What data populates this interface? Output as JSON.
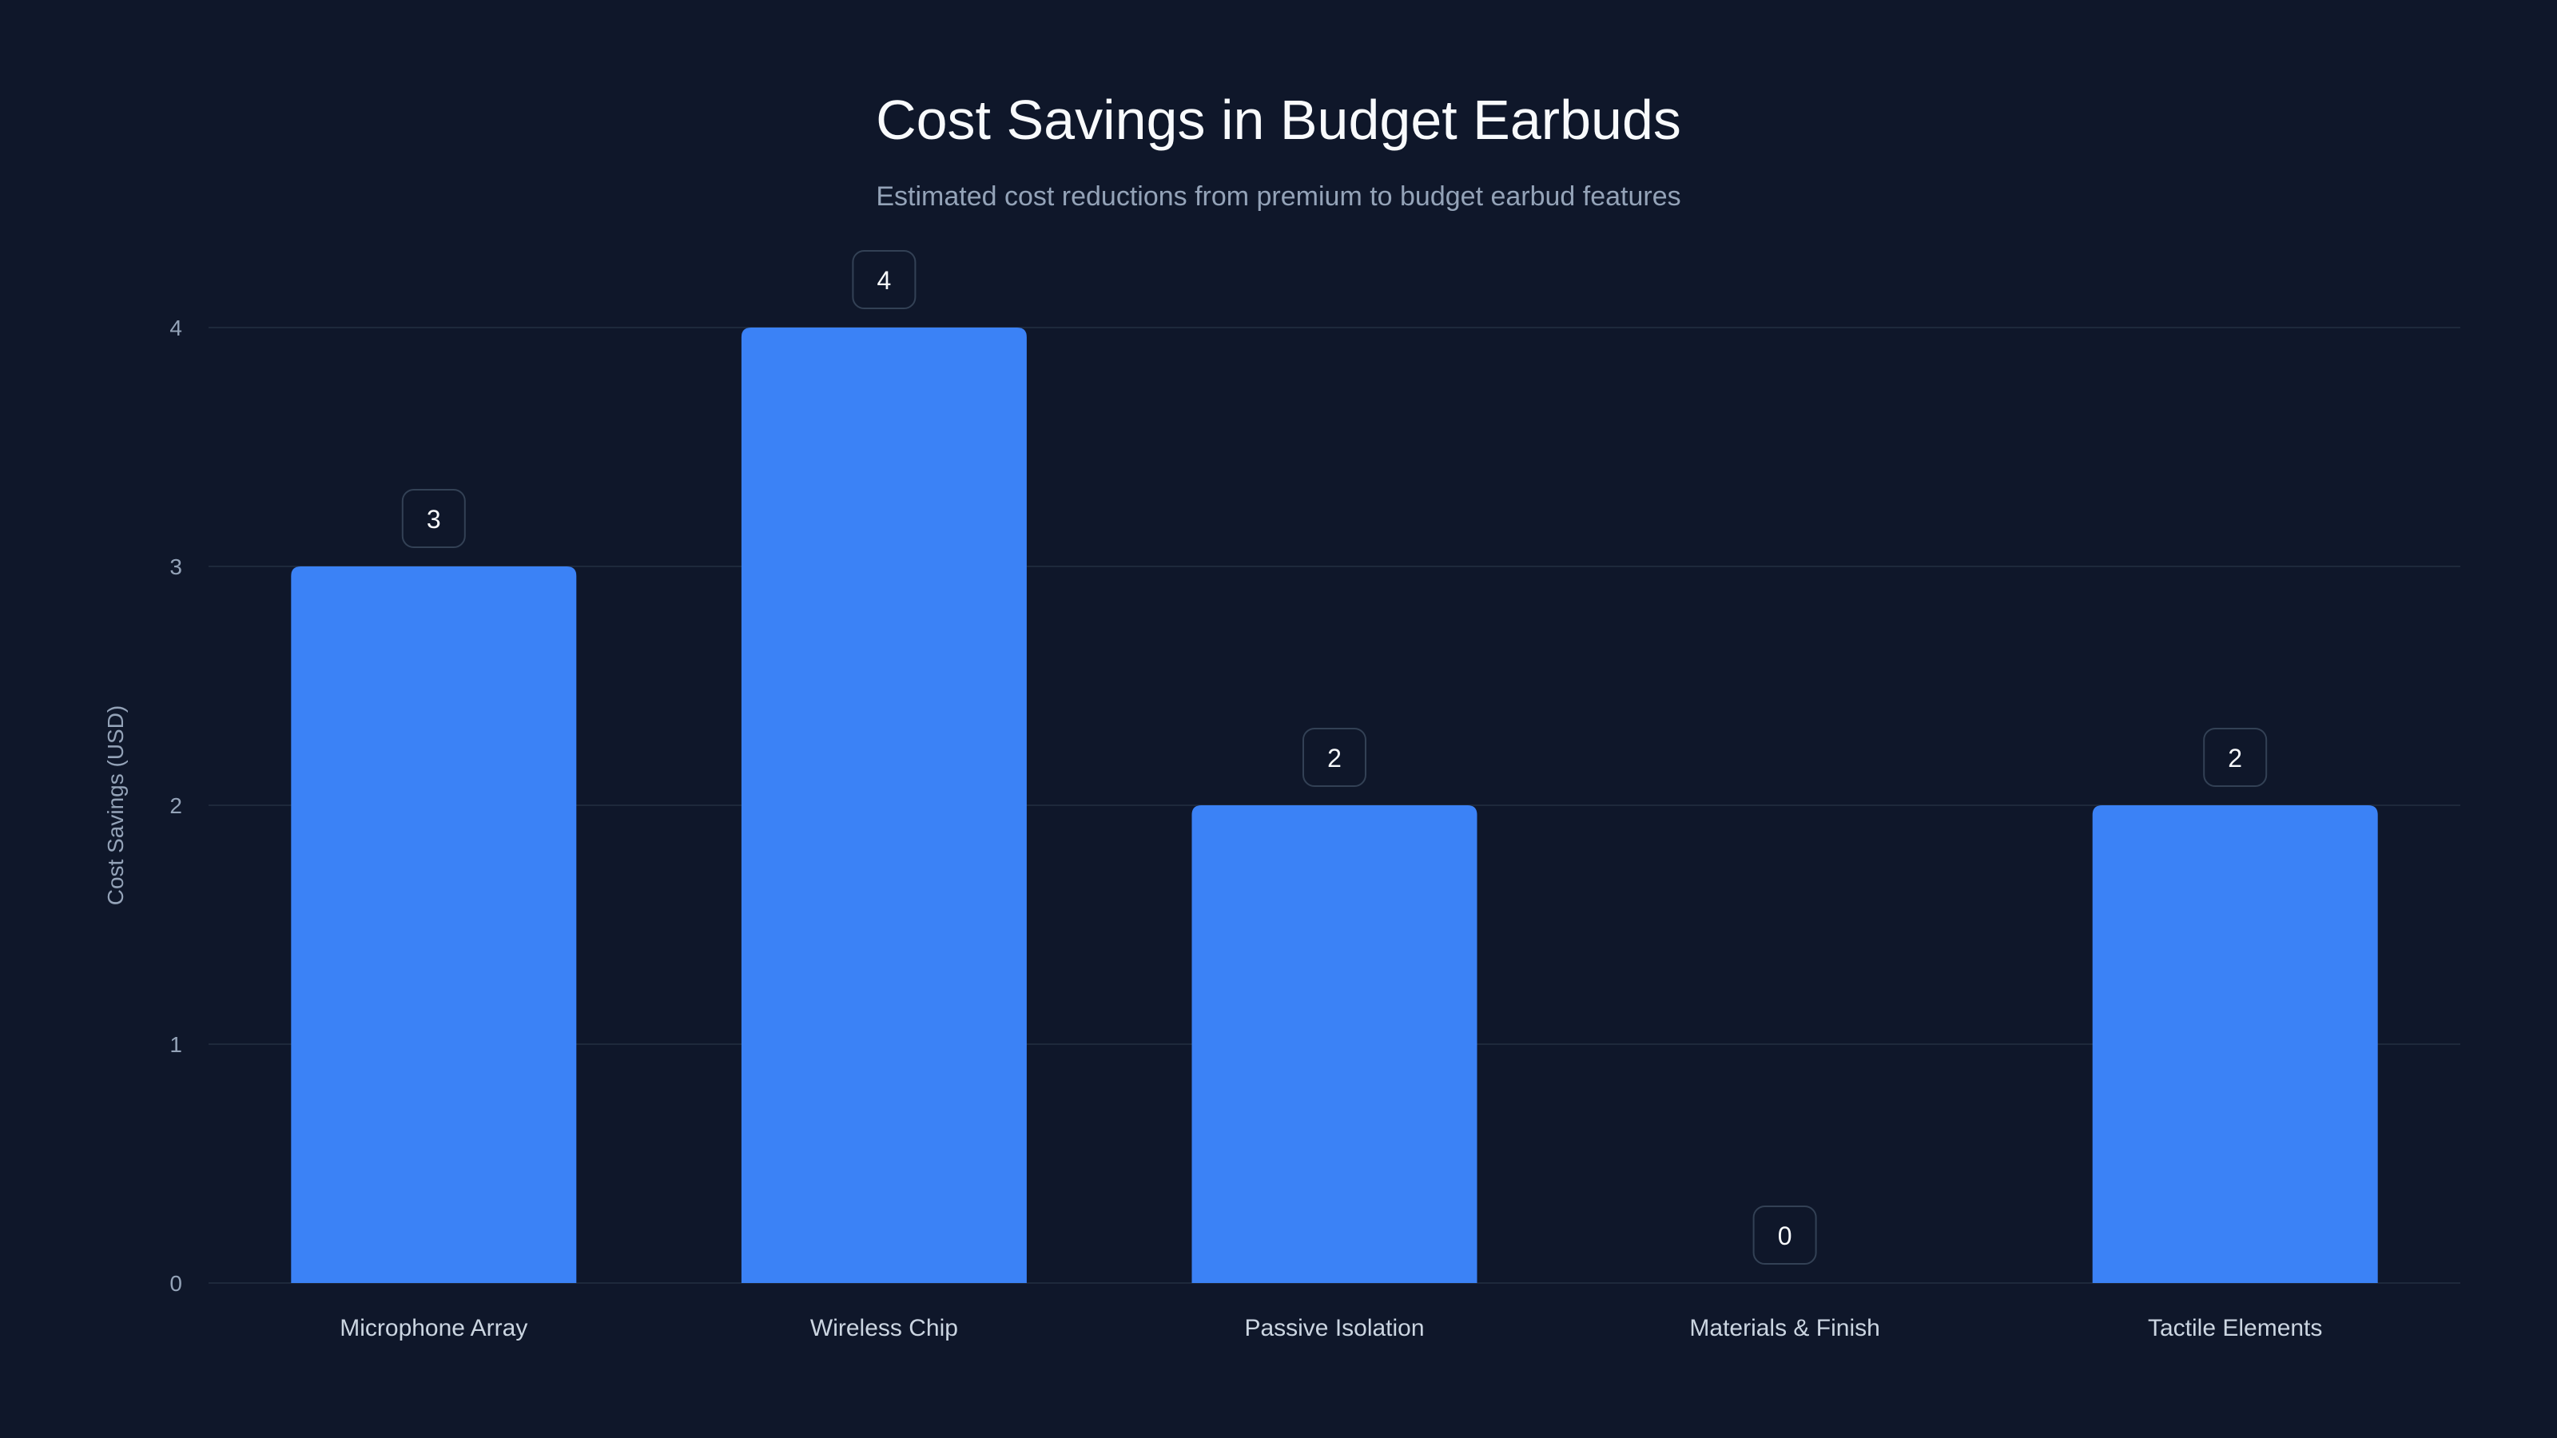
{
  "chart_data": {
    "type": "bar",
    "title": "Cost Savings in Budget Earbuds",
    "subtitle": "Estimated cost reductions from premium to budget earbud features",
    "xlabel": "",
    "ylabel": "Cost Savings (USD)",
    "categories": [
      "Microphone Array",
      "Wireless Chip",
      "Passive Isolation",
      "Materials & Finish",
      "Tactile Elements"
    ],
    "values": [
      3,
      4,
      2,
      0,
      2
    ],
    "ylim": [
      0,
      4
    ],
    "yticks": [
      0,
      1,
      2,
      3,
      4
    ],
    "grid": true,
    "colors": {
      "background": "#0f172a",
      "bar": "#3b82f6",
      "grid": "#1e293b",
      "label_box": "#0f172a",
      "label_border": "#334155"
    }
  }
}
